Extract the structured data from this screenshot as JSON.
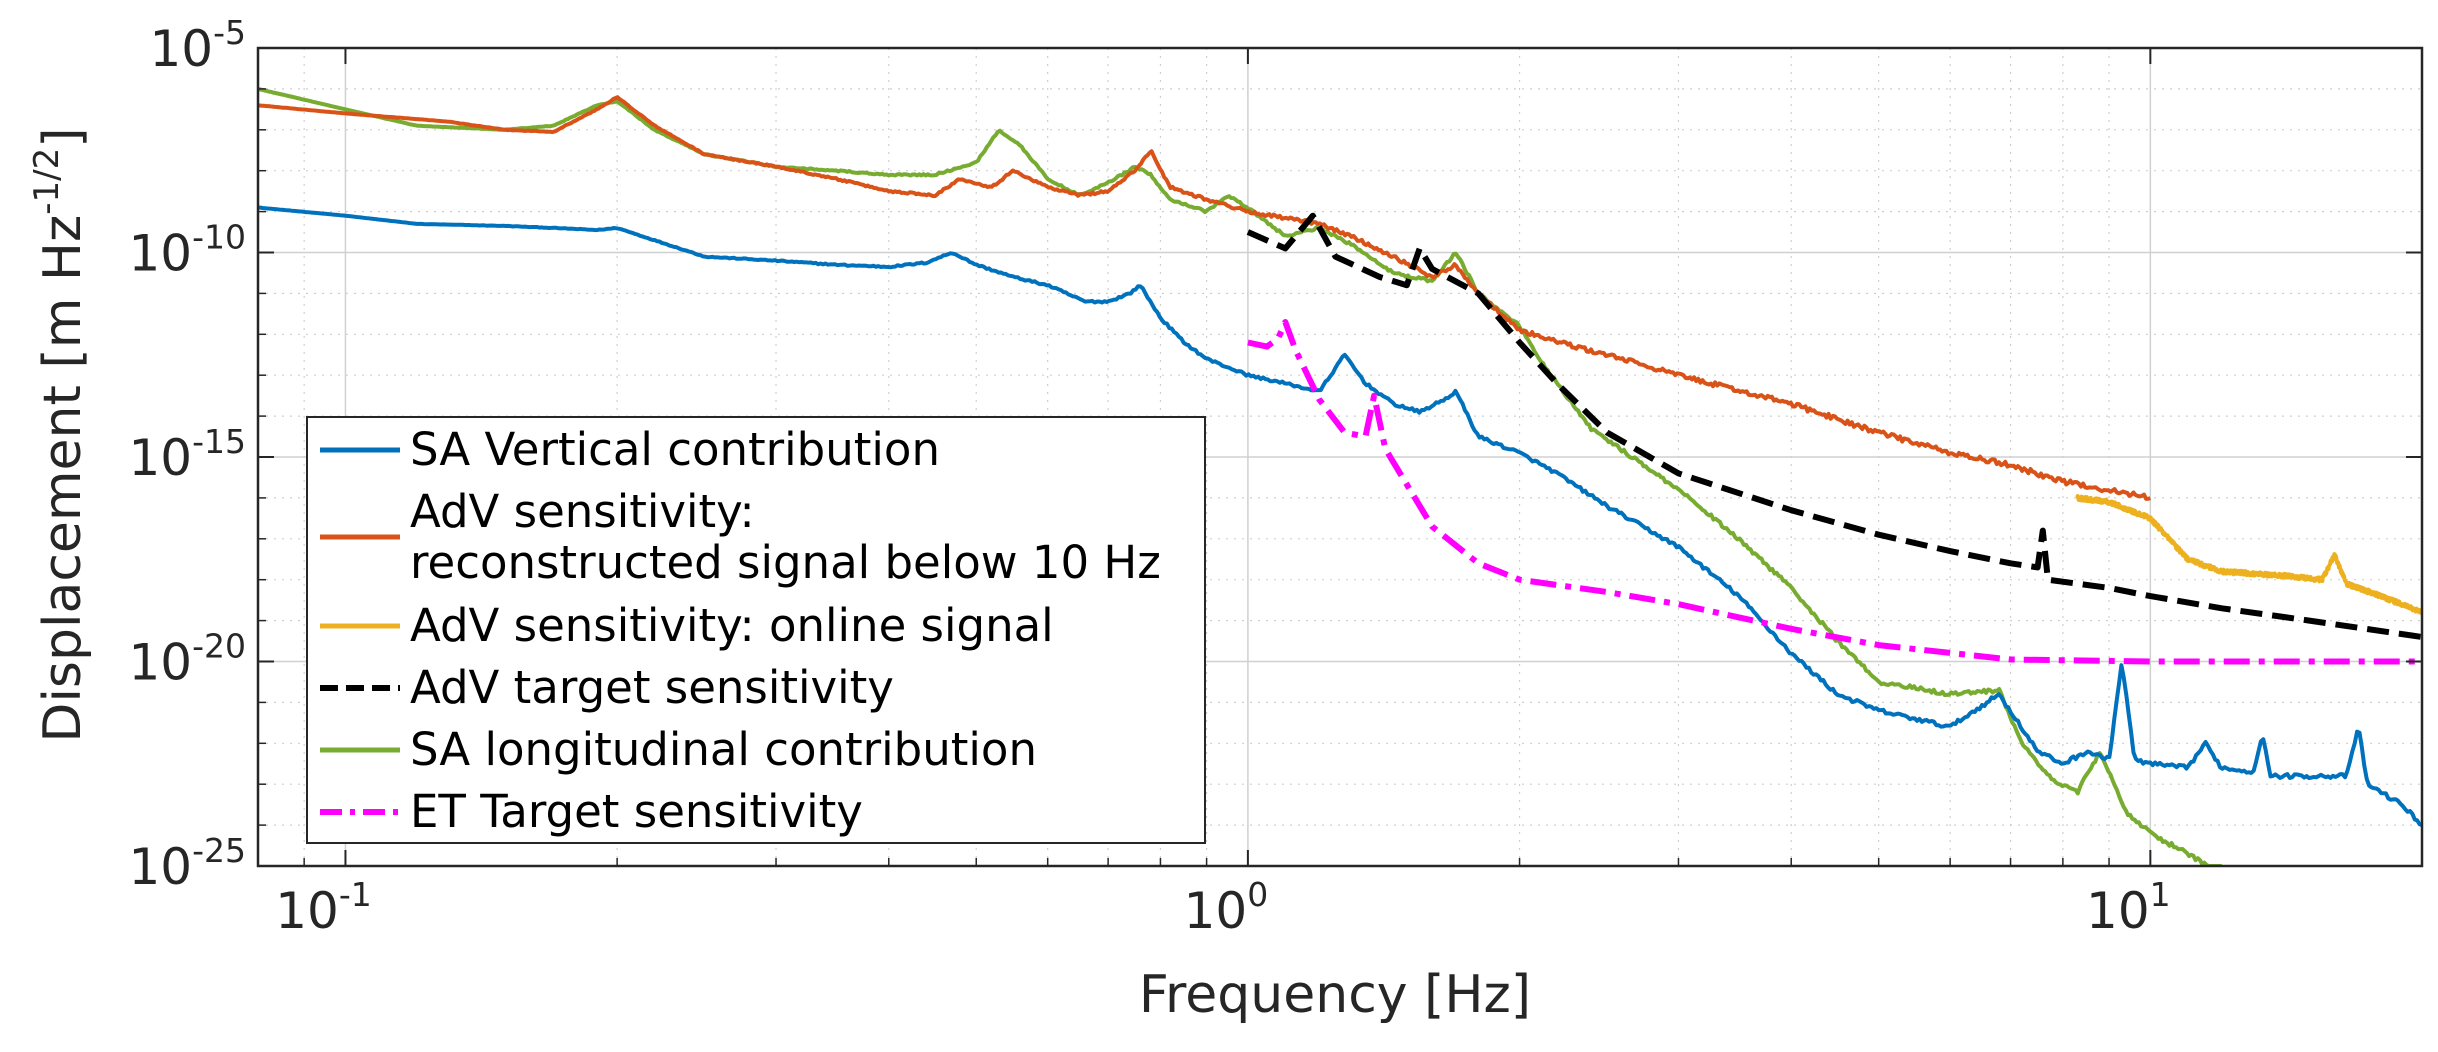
{
  "chart_data": {
    "type": "line",
    "xscale": "log",
    "yscale": "log",
    "xlabel": "Frequency [Hz]",
    "ylabel": "Displacement [m Hz",
    "ylabel_exponent": "-1/2",
    "ylabel_close": "]",
    "xlim": [
      0.08,
      20
    ],
    "ylim": [
      1e-25,
      1e-05
    ],
    "xticks": [
      {
        "value": 0.1,
        "base": "10",
        "exp": "-1"
      },
      {
        "value": 1,
        "base": "10",
        "exp": "0"
      },
      {
        "value": 10,
        "base": "10",
        "exp": "1"
      }
    ],
    "yticks": [
      {
        "value": 1e-05,
        "base": "10",
        "exp": "-5"
      },
      {
        "value": 1e-10,
        "base": "10",
        "exp": "-10"
      },
      {
        "value": 1e-15,
        "base": "10",
        "exp": "-15"
      },
      {
        "value": 1e-20,
        "base": "10",
        "exp": "-20"
      },
      {
        "value": 1e-25,
        "base": "10",
        "exp": "-25"
      }
    ],
    "grid": true,
    "legend_position": "bottom-left",
    "series": [
      {
        "name": "SA Vertical contribution",
        "legend_lines": [
          "SA Vertical contribution"
        ],
        "color": "#0072BD",
        "dash": "solid",
        "noise": 0.1,
        "points": [
          [
            0.08,
            -8.9
          ],
          [
            0.1,
            -9.1
          ],
          [
            0.12,
            -9.3
          ],
          [
            0.15,
            -9.35
          ],
          [
            0.17,
            -9.4
          ],
          [
            0.19,
            -9.45
          ],
          [
            0.2,
            -9.4
          ],
          [
            0.22,
            -9.7
          ],
          [
            0.25,
            -10.1
          ],
          [
            0.3,
            -10.2
          ],
          [
            0.35,
            -10.3
          ],
          [
            0.4,
            -10.35
          ],
          [
            0.44,
            -10.25
          ],
          [
            0.47,
            -10.0
          ],
          [
            0.5,
            -10.3
          ],
          [
            0.55,
            -10.6
          ],
          [
            0.6,
            -10.8
          ],
          [
            0.66,
            -11.2
          ],
          [
            0.7,
            -11.2
          ],
          [
            0.74,
            -11.0
          ],
          [
            0.76,
            -10.8
          ],
          [
            0.8,
            -11.6
          ],
          [
            0.85,
            -12.2
          ],
          [
            0.9,
            -12.6
          ],
          [
            1.0,
            -13.0
          ],
          [
            1.1,
            -13.2
          ],
          [
            1.2,
            -13.4
          ],
          [
            1.28,
            -12.5
          ],
          [
            1.35,
            -13.2
          ],
          [
            1.45,
            -13.7
          ],
          [
            1.55,
            -13.9
          ],
          [
            1.65,
            -13.6
          ],
          [
            1.7,
            -13.4
          ],
          [
            1.8,
            -14.5
          ],
          [
            2.0,
            -14.9
          ],
          [
            2.2,
            -15.4
          ],
          [
            2.5,
            -16.2
          ],
          [
            3.0,
            -17.2
          ],
          [
            3.5,
            -18.4
          ],
          [
            4.0,
            -19.8
          ],
          [
            4.5,
            -20.8
          ],
          [
            5.0,
            -21.2
          ],
          [
            6.0,
            -21.6
          ],
          [
            6.8,
            -20.8
          ],
          [
            7.5,
            -22.2
          ],
          [
            8.0,
            -22.5
          ],
          [
            8.5,
            -22.2
          ],
          [
            9.0,
            -22.4
          ],
          [
            9.3,
            -20.0
          ],
          [
            9.6,
            -22.4
          ],
          [
            10,
            -22.5
          ],
          [
            11,
            -22.6
          ],
          [
            11.5,
            -22.0
          ],
          [
            12,
            -22.6
          ],
          [
            13,
            -22.7
          ],
          [
            13.3,
            -21.8
          ],
          [
            13.6,
            -22.8
          ],
          [
            15,
            -22.8
          ],
          [
            16.5,
            -22.8
          ],
          [
            17,
            -21.6
          ],
          [
            17.4,
            -23.0
          ],
          [
            19,
            -23.5
          ],
          [
            20,
            -24.0
          ]
        ]
      },
      {
        "name": "AdV sensitivity: reconstructed signal below 10 Hz",
        "legend_lines": [
          "AdV sensitivity:",
          "reconstructed signal below 10 Hz"
        ],
        "color": "#D95319",
        "dash": "solid",
        "noise": 0.12,
        "points": [
          [
            0.08,
            -6.4
          ],
          [
            0.1,
            -6.6
          ],
          [
            0.13,
            -6.8
          ],
          [
            0.15,
            -7.0
          ],
          [
            0.17,
            -7.05
          ],
          [
            0.19,
            -6.5
          ],
          [
            0.2,
            -6.2
          ],
          [
            0.22,
            -6.9
          ],
          [
            0.25,
            -7.6
          ],
          [
            0.3,
            -7.9
          ],
          [
            0.35,
            -8.2
          ],
          [
            0.4,
            -8.5
          ],
          [
            0.45,
            -8.6
          ],
          [
            0.48,
            -8.2
          ],
          [
            0.52,
            -8.4
          ],
          [
            0.55,
            -8.0
          ],
          [
            0.6,
            -8.4
          ],
          [
            0.65,
            -8.6
          ],
          [
            0.7,
            -8.5
          ],
          [
            0.75,
            -8.0
          ],
          [
            0.78,
            -7.5
          ],
          [
            0.82,
            -8.4
          ],
          [
            0.9,
            -8.7
          ],
          [
            1.0,
            -9.0
          ],
          [
            1.2,
            -9.3
          ],
          [
            1.3,
            -9.6
          ],
          [
            1.45,
            -10.1
          ],
          [
            1.6,
            -10.6
          ],
          [
            1.7,
            -10.3
          ],
          [
            1.8,
            -11.0
          ],
          [
            2.0,
            -11.9
          ],
          [
            2.3,
            -12.3
          ],
          [
            2.6,
            -12.6
          ],
          [
            3.0,
            -13.0
          ],
          [
            4.0,
            -13.7
          ],
          [
            5.0,
            -14.4
          ],
          [
            6.0,
            -14.9
          ],
          [
            7.0,
            -15.2
          ],
          [
            8.0,
            -15.6
          ],
          [
            10.0,
            -16.0
          ]
        ]
      },
      {
        "name": "AdV sensitivity: online signal",
        "legend_lines": [
          "AdV sensitivity: online signal"
        ],
        "color": "#EDB120",
        "dash": "solid",
        "noise": 0.1,
        "points": [
          [
            8.3,
            -16.0
          ],
          [
            9.0,
            -16.1
          ],
          [
            10.0,
            -16.5
          ],
          [
            11.0,
            -17.5
          ],
          [
            12.0,
            -17.8
          ],
          [
            14.0,
            -17.9
          ],
          [
            15.5,
            -18.0
          ],
          [
            16.0,
            -17.4
          ],
          [
            16.5,
            -18.1
          ],
          [
            18.0,
            -18.4
          ],
          [
            20.0,
            -18.8
          ]
        ]
      },
      {
        "name": "AdV target sensitivity",
        "legend_lines": [
          "AdV target sensitivity"
        ],
        "color": "#000000",
        "dash": "dashed",
        "noise": 0.0,
        "points": [
          [
            1.0,
            -9.5
          ],
          [
            1.1,
            -9.9
          ],
          [
            1.18,
            -9.1
          ],
          [
            1.25,
            -10.1
          ],
          [
            1.4,
            -10.6
          ],
          [
            1.5,
            -10.8
          ],
          [
            1.55,
            -9.9
          ],
          [
            1.6,
            -10.4
          ],
          [
            1.8,
            -11.0
          ],
          [
            2.0,
            -12.2
          ],
          [
            2.2,
            -13.2
          ],
          [
            2.5,
            -14.4
          ],
          [
            3.0,
            -15.4
          ],
          [
            4.0,
            -16.3
          ],
          [
            5.0,
            -16.9
          ],
          [
            6.0,
            -17.3
          ],
          [
            7.0,
            -17.6
          ],
          [
            7.5,
            -17.7
          ],
          [
            7.6,
            -16.8
          ],
          [
            7.7,
            -18.0
          ],
          [
            9.0,
            -18.2
          ],
          [
            10.0,
            -18.4
          ],
          [
            12.0,
            -18.7
          ],
          [
            15.0,
            -19.0
          ],
          [
            20.0,
            -19.4
          ]
        ]
      },
      {
        "name": "SA longitudinal contribution",
        "legend_lines": [
          "SA longitudinal contribution"
        ],
        "color": "#77AC30",
        "dash": "solid",
        "noise": 0.1,
        "points": [
          [
            0.08,
            -6.0
          ],
          [
            0.1,
            -6.5
          ],
          [
            0.12,
            -6.9
          ],
          [
            0.15,
            -7.0
          ],
          [
            0.17,
            -6.9
          ],
          [
            0.19,
            -6.4
          ],
          [
            0.2,
            -6.3
          ],
          [
            0.22,
            -7.0
          ],
          [
            0.25,
            -7.6
          ],
          [
            0.3,
            -7.9
          ],
          [
            0.35,
            -8.0
          ],
          [
            0.4,
            -8.1
          ],
          [
            0.45,
            -8.1
          ],
          [
            0.5,
            -7.8
          ],
          [
            0.53,
            -7.0
          ],
          [
            0.56,
            -7.4
          ],
          [
            0.6,
            -8.2
          ],
          [
            0.65,
            -8.6
          ],
          [
            0.7,
            -8.3
          ],
          [
            0.75,
            -7.9
          ],
          [
            0.78,
            -8.1
          ],
          [
            0.82,
            -8.7
          ],
          [
            0.9,
            -9.0
          ],
          [
            0.95,
            -8.6
          ],
          [
            1.0,
            -8.9
          ],
          [
            1.1,
            -9.6
          ],
          [
            1.2,
            -9.4
          ],
          [
            1.3,
            -9.8
          ],
          [
            1.45,
            -10.5
          ],
          [
            1.6,
            -10.7
          ],
          [
            1.7,
            -10.0
          ],
          [
            1.8,
            -11.0
          ],
          [
            2.0,
            -11.8
          ],
          [
            2.1,
            -12.6
          ],
          [
            2.4,
            -14.3
          ],
          [
            3.0,
            -15.8
          ],
          [
            3.5,
            -17.0
          ],
          [
            4.0,
            -18.2
          ],
          [
            4.5,
            -19.5
          ],
          [
            5.0,
            -20.5
          ],
          [
            6.0,
            -20.8
          ],
          [
            6.8,
            -20.7
          ],
          [
            7.2,
            -22.0
          ],
          [
            7.8,
            -22.9
          ],
          [
            8.3,
            -23.2
          ],
          [
            8.8,
            -22.2
          ],
          [
            9.4,
            -23.7
          ],
          [
            10.0,
            -24.2
          ],
          [
            11.0,
            -24.7
          ],
          [
            12.0,
            -25.2
          ]
        ]
      },
      {
        "name": "ET Target sensitivity",
        "legend_lines": [
          "ET Target sensitivity"
        ],
        "color": "#FF00FF",
        "dash": "dashdot",
        "noise": 0.0,
        "points": [
          [
            1.0,
            -12.2
          ],
          [
            1.05,
            -12.3
          ],
          [
            1.08,
            -12.1
          ],
          [
            1.1,
            -11.7
          ],
          [
            1.13,
            -12.4
          ],
          [
            1.2,
            -13.6
          ],
          [
            1.28,
            -14.4
          ],
          [
            1.35,
            -14.5
          ],
          [
            1.38,
            -13.5
          ],
          [
            1.42,
            -14.8
          ],
          [
            1.6,
            -16.7
          ],
          [
            1.8,
            -17.6
          ],
          [
            2.0,
            -18.0
          ],
          [
            2.5,
            -18.3
          ],
          [
            3.0,
            -18.6
          ],
          [
            4.0,
            -19.2
          ],
          [
            5.0,
            -19.6
          ],
          [
            7.0,
            -19.95
          ],
          [
            10.0,
            -20.0
          ],
          [
            20.0,
            -20.0
          ]
        ]
      }
    ]
  }
}
